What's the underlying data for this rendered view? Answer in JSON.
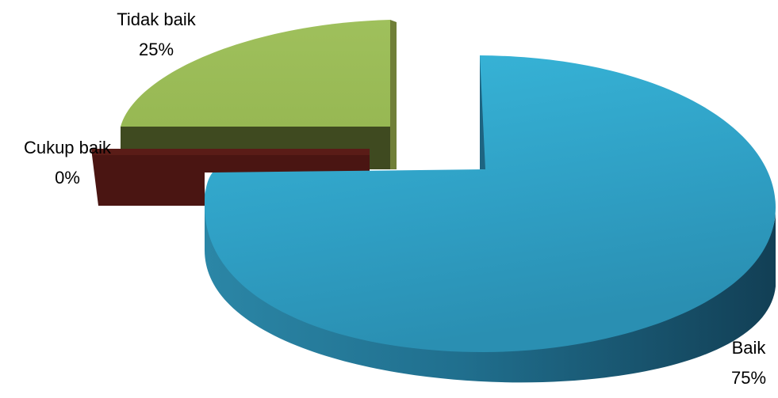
{
  "chart_data": {
    "type": "pie",
    "categories": [
      "Baik",
      "Tidak baik",
      "Cukup baik"
    ],
    "values": [
      75,
      25,
      0
    ],
    "labels": [
      {
        "name": "Baik",
        "value": "75%"
      },
      {
        "name": "Tidak baik",
        "value": "25%"
      },
      {
        "name": "Cukup baik",
        "value": "0%"
      }
    ],
    "colors": {
      "baik": "#33aacc",
      "tidak_baik": "#9bbb59",
      "cukup_baik": "#4a1512"
    },
    "style": "3d-exploded"
  }
}
